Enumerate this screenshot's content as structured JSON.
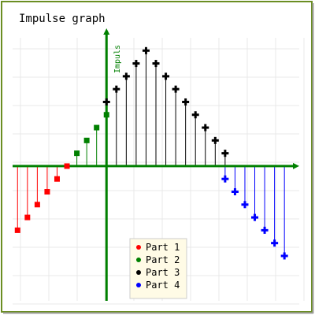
{
  "chart_data": {
    "type": "impulse",
    "title": "Impulse graph",
    "ylabel": "Impuls",
    "xlim": [
      -9.5,
      19.5
    ],
    "ylim": [
      -10.5,
      10
    ],
    "grid": true,
    "legend_position": "bottom-center",
    "series": [
      {
        "name": "Part 1",
        "color": "#ff0000",
        "marker": "square",
        "x": [
          -9,
          -8,
          -7,
          -6,
          -5,
          -4
        ],
        "y": [
          -5,
          -4,
          -3,
          -2,
          -1,
          0
        ]
      },
      {
        "name": "Part 2",
        "color": "#008000",
        "marker": "square",
        "x": [
          -3,
          -2,
          -1,
          0
        ],
        "y": [
          1,
          2,
          3,
          4
        ]
      },
      {
        "name": "Part 3",
        "color": "#000000",
        "marker": "cross",
        "x": [
          0,
          1,
          2,
          3,
          4,
          5,
          6,
          7,
          8,
          9,
          10,
          11,
          12
        ],
        "y": [
          5,
          6,
          7,
          8,
          9,
          8,
          7,
          6,
          5,
          4,
          3,
          2,
          1
        ]
      },
      {
        "name": "Part 4",
        "color": "#0000ff",
        "marker": "cross",
        "x": [
          12,
          13,
          14,
          15,
          16,
          17,
          18
        ],
        "y": [
          -1,
          -2,
          -3,
          -4,
          -5,
          -6,
          -7
        ]
      }
    ],
    "colors": {
      "frame": "#6b8e23",
      "axis": "#008000",
      "grid": "#e8e8e8",
      "legend_bg": "#fffbe6",
      "legend_border": "#cccccc"
    }
  }
}
